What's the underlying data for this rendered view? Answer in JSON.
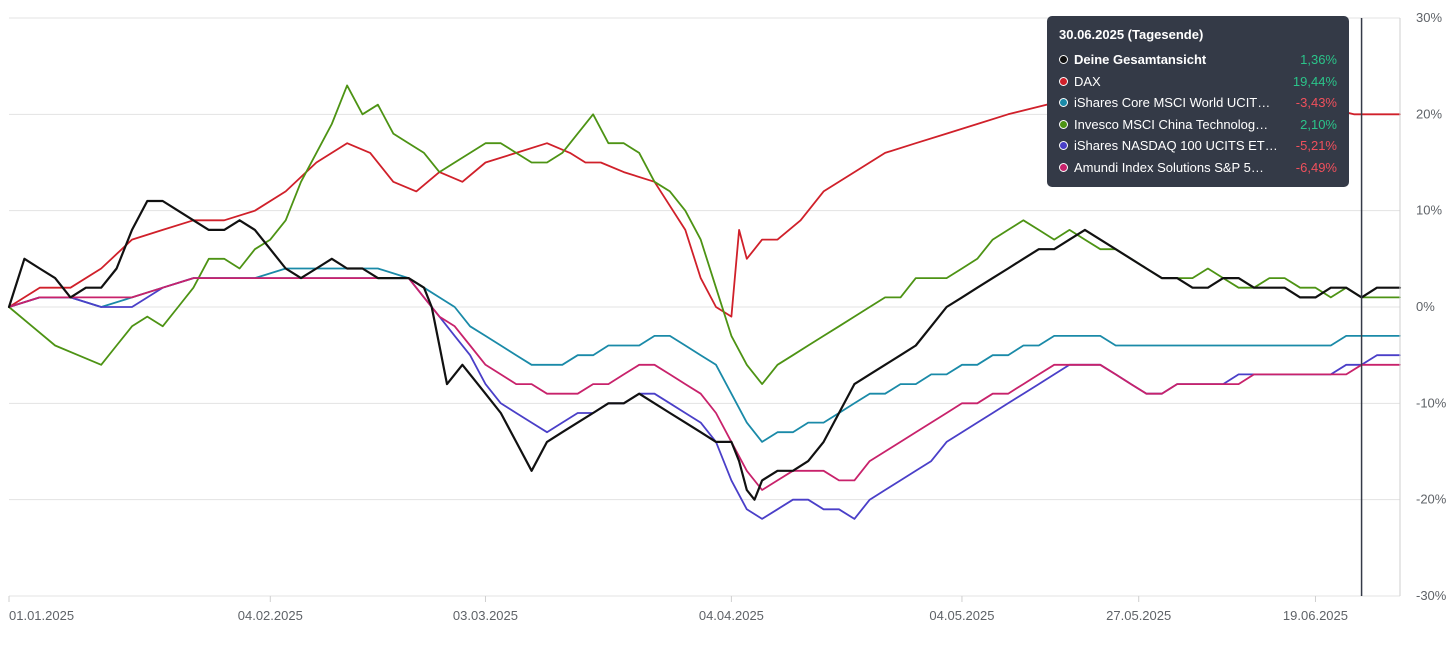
{
  "chart_data": {
    "type": "line",
    "y_unit": "%",
    "ylim": [
      -30,
      30
    ],
    "y_ticks": [
      30,
      20,
      10,
      0,
      -10,
      -20,
      -30
    ],
    "y_tick_labels": [
      "30%",
      "20%",
      "10%",
      "0%",
      "-10%",
      "-20%",
      "-30%"
    ],
    "x_tick_labels": [
      "01.01.2025",
      "04.02.2025",
      "03.03.2025",
      "04.04.2025",
      "04.05.2025",
      "27.05.2025",
      "19.06.2025"
    ],
    "x_tick_positions": [
      0,
      34,
      62,
      94,
      124,
      147,
      170
    ],
    "x_range": [
      0,
      181
    ],
    "cursor_x": 176,
    "grid": true,
    "series": [
      {
        "name": "DAX",
        "color": "#d0202a",
        "x": [
          0,
          4,
          8,
          12,
          16,
          20,
          24,
          28,
          32,
          36,
          40,
          44,
          47,
          50,
          53,
          56,
          59,
          62,
          66,
          70,
          73,
          75,
          77,
          80,
          84,
          88,
          90,
          92,
          94,
          95,
          96,
          97,
          98,
          100,
          103,
          106,
          110,
          114,
          118,
          122,
          126,
          130,
          135,
          140,
          145,
          150,
          155,
          160,
          165,
          170,
          175,
          178,
          181
        ],
        "y": [
          0,
          2,
          2,
          4,
          7,
          8,
          9,
          9,
          10,
          12,
          15,
          17,
          16,
          13,
          12,
          14,
          13,
          15,
          16,
          17,
          16,
          15,
          15,
          14,
          13,
          8,
          3,
          0,
          -1,
          8,
          5,
          6,
          7,
          7,
          9,
          12,
          14,
          16,
          17,
          18,
          19,
          20,
          21,
          21,
          22,
          22,
          22,
          21,
          21,
          21,
          20,
          20,
          20
        ]
      },
      {
        "name": "Invesco MSCI China Technolog…",
        "color": "#4d9314",
        "x": [
          0,
          3,
          6,
          9,
          12,
          14,
          16,
          18,
          20,
          22,
          24,
          26,
          28,
          30,
          32,
          34,
          36,
          38,
          40,
          42,
          44,
          46,
          48,
          50,
          52,
          54,
          56,
          58,
          60,
          62,
          64,
          66,
          68,
          70,
          72,
          74,
          76,
          78,
          80,
          82,
          84,
          86,
          88,
          90,
          92,
          94,
          96,
          98,
          100,
          102,
          104,
          106,
          108,
          110,
          112,
          114,
          116,
          118,
          120,
          122,
          124,
          126,
          128,
          130,
          132,
          134,
          136,
          138,
          140,
          142,
          144,
          146,
          148,
          150,
          152,
          154,
          156,
          158,
          160,
          162,
          164,
          166,
          168,
          170,
          172,
          174,
          176,
          178,
          181
        ],
        "y": [
          0,
          -2,
          -4,
          -5,
          -6,
          -4,
          -2,
          -1,
          -2,
          0,
          2,
          5,
          5,
          4,
          6,
          7,
          9,
          13,
          16,
          19,
          23,
          20,
          21,
          18,
          17,
          16,
          14,
          15,
          16,
          17,
          17,
          16,
          15,
          15,
          16,
          18,
          20,
          17,
          17,
          16,
          13,
          12,
          10,
          7,
          2,
          -3,
          -6,
          -8,
          -6,
          -5,
          -4,
          -3,
          -2,
          -1,
          0,
          1,
          1,
          3,
          3,
          3,
          4,
          5,
          7,
          8,
          9,
          8,
          7,
          8,
          7,
          6,
          6,
          5,
          4,
          3,
          3,
          3,
          4,
          3,
          2,
          2,
          3,
          3,
          2,
          2,
          1,
          2,
          1,
          1,
          1
        ]
      },
      {
        "name": "iShares Core MSCI World UCIT…",
        "color": "#1a8aa8",
        "x": [
          0,
          4,
          8,
          12,
          16,
          20,
          24,
          28,
          32,
          36,
          40,
          44,
          48,
          52,
          54,
          56,
          58,
          60,
          62,
          64,
          66,
          68,
          70,
          72,
          74,
          76,
          78,
          80,
          82,
          84,
          86,
          88,
          90,
          92,
          94,
          96,
          98,
          100,
          102,
          104,
          106,
          108,
          110,
          112,
          114,
          116,
          118,
          120,
          122,
          124,
          126,
          128,
          130,
          132,
          134,
          136,
          138,
          140,
          142,
          144,
          146,
          148,
          150,
          152,
          154,
          156,
          158,
          160,
          162,
          164,
          166,
          168,
          170,
          172,
          174,
          176,
          178,
          181
        ],
        "y": [
          0,
          1,
          1,
          0,
          1,
          2,
          3,
          3,
          3,
          4,
          4,
          4,
          4,
          3,
          2,
          1,
          0,
          -2,
          -3,
          -4,
          -5,
          -6,
          -6,
          -6,
          -5,
          -5,
          -4,
          -4,
          -4,
          -3,
          -3,
          -4,
          -5,
          -6,
          -9,
          -12,
          -14,
          -13,
          -13,
          -12,
          -12,
          -11,
          -10,
          -9,
          -9,
          -8,
          -8,
          -7,
          -7,
          -6,
          -6,
          -5,
          -5,
          -4,
          -4,
          -3,
          -3,
          -3,
          -3,
          -4,
          -4,
          -4,
          -4,
          -4,
          -4,
          -4,
          -4,
          -4,
          -4,
          -4,
          -4,
          -4,
          -4,
          -4,
          -3,
          -3,
          -3,
          -3
        ]
      },
      {
        "name": "iShares NASDAQ 100 UCITS ET…",
        "color": "#4a3fc8",
        "x": [
          0,
          4,
          8,
          12,
          16,
          20,
          24,
          28,
          32,
          36,
          40,
          44,
          48,
          52,
          54,
          56,
          58,
          60,
          62,
          64,
          66,
          68,
          70,
          72,
          74,
          76,
          78,
          80,
          82,
          84,
          86,
          88,
          90,
          92,
          94,
          96,
          98,
          100,
          102,
          104,
          106,
          108,
          110,
          112,
          114,
          116,
          118,
          120,
          122,
          124,
          126,
          128,
          130,
          132,
          134,
          136,
          138,
          140,
          142,
          144,
          146,
          148,
          150,
          152,
          154,
          156,
          158,
          160,
          162,
          164,
          166,
          168,
          170,
          172,
          174,
          176,
          178,
          181
        ],
        "y": [
          0,
          1,
          1,
          0,
          0,
          2,
          3,
          3,
          3,
          3,
          3,
          3,
          3,
          3,
          1,
          -1,
          -3,
          -5,
          -8,
          -10,
          -11,
          -12,
          -13,
          -12,
          -11,
          -11,
          -10,
          -10,
          -9,
          -9,
          -10,
          -11,
          -12,
          -14,
          -18,
          -21,
          -22,
          -21,
          -20,
          -20,
          -21,
          -21,
          -22,
          -20,
          -19,
          -18,
          -17,
          -16,
          -14,
          -13,
          -12,
          -11,
          -10,
          -9,
          -8,
          -7,
          -6,
          -6,
          -6,
          -7,
          -8,
          -9,
          -9,
          -8,
          -8,
          -8,
          -8,
          -7,
          -7,
          -7,
          -7,
          -7,
          -7,
          -7,
          -6,
          -6,
          -5,
          -5
        ]
      },
      {
        "name": "Amundi Index Solutions S&P 5…",
        "color": "#c8226b",
        "x": [
          0,
          4,
          8,
          12,
          16,
          20,
          24,
          28,
          32,
          36,
          40,
          44,
          48,
          52,
          54,
          56,
          58,
          60,
          62,
          64,
          66,
          68,
          70,
          72,
          74,
          76,
          78,
          80,
          82,
          84,
          86,
          88,
          90,
          92,
          94,
          96,
          98,
          100,
          102,
          104,
          106,
          108,
          110,
          112,
          114,
          116,
          118,
          120,
          122,
          124,
          126,
          128,
          130,
          132,
          134,
          136,
          138,
          140,
          142,
          144,
          146,
          148,
          150,
          152,
          154,
          156,
          158,
          160,
          162,
          164,
          166,
          168,
          170,
          172,
          174,
          176,
          178,
          181
        ],
        "y": [
          0,
          1,
          1,
          1,
          1,
          2,
          3,
          3,
          3,
          3,
          3,
          3,
          3,
          3,
          1,
          -1,
          -2,
          -4,
          -6,
          -7,
          -8,
          -8,
          -9,
          -9,
          -9,
          -8,
          -8,
          -7,
          -6,
          -6,
          -7,
          -8,
          -9,
          -11,
          -14,
          -17,
          -19,
          -18,
          -17,
          -17,
          -17,
          -18,
          -18,
          -16,
          -15,
          -14,
          -13,
          -12,
          -11,
          -10,
          -10,
          -9,
          -9,
          -8,
          -7,
          -6,
          -6,
          -6,
          -6,
          -7,
          -8,
          -9,
          -9,
          -8,
          -8,
          -8,
          -8,
          -8,
          -7,
          -7,
          -7,
          -7,
          -7,
          -7,
          -7,
          -6,
          -6,
          -6
        ]
      },
      {
        "name": "Deine Gesamtansicht",
        "color": "#111111",
        "x": [
          0,
          2,
          4,
          6,
          8,
          10,
          12,
          14,
          16,
          18,
          20,
          22,
          24,
          26,
          28,
          30,
          32,
          34,
          36,
          38,
          40,
          42,
          44,
          46,
          48,
          50,
          52,
          54,
          55,
          56,
          57,
          58,
          59,
          60,
          62,
          64,
          66,
          68,
          70,
          72,
          74,
          76,
          78,
          80,
          82,
          84,
          86,
          88,
          90,
          92,
          94,
          95,
          96,
          97,
          98,
          100,
          102,
          104,
          106,
          108,
          110,
          112,
          114,
          116,
          118,
          120,
          122,
          124,
          126,
          128,
          130,
          132,
          134,
          136,
          138,
          140,
          142,
          144,
          146,
          148,
          150,
          152,
          154,
          156,
          158,
          160,
          162,
          164,
          166,
          168,
          170,
          172,
          174,
          176,
          178,
          181
        ],
        "y": [
          0,
          5,
          4,
          3,
          1,
          2,
          2,
          4,
          8,
          11,
          11,
          10,
          9,
          8,
          8,
          9,
          8,
          6,
          4,
          3,
          4,
          5,
          4,
          4,
          3,
          3,
          3,
          2,
          0,
          -4,
          -8,
          -7,
          -6,
          -7,
          -9,
          -11,
          -14,
          -17,
          -14,
          -13,
          -12,
          -11,
          -10,
          -10,
          -9,
          -10,
          -11,
          -12,
          -13,
          -14,
          -14,
          -16,
          -19,
          -20,
          -18,
          -17,
          -17,
          -16,
          -14,
          -11,
          -8,
          -7,
          -6,
          -5,
          -4,
          -2,
          0,
          1,
          2,
          3,
          4,
          5,
          6,
          6,
          7,
          8,
          7,
          6,
          5,
          4,
          3,
          3,
          2,
          2,
          3,
          3,
          2,
          2,
          2,
          1,
          1,
          2,
          2,
          1,
          2,
          2
        ]
      }
    ]
  },
  "tooltip": {
    "title": "30.06.2025 (Tagesende)",
    "rows": [
      {
        "name": "Deine Gesamtansicht",
        "value": "1,36%",
        "dot_color": "#111111",
        "value_color": "#2bc48a"
      },
      {
        "name": "DAX",
        "value": "19,44%",
        "dot_color": "#d0202a",
        "value_color": "#2bc48a"
      },
      {
        "name": "iShares Core MSCI World UCIT…",
        "value": "-3,43%",
        "dot_color": "#1a8aa8",
        "value_color": "#f0505c"
      },
      {
        "name": "Invesco MSCI China Technolog…",
        "value": "2,10%",
        "dot_color": "#4d9314",
        "value_color": "#2bc48a"
      },
      {
        "name": "iShares NASDAQ 100 UCITS ET…",
        "value": "-5,21%",
        "dot_color": "#4a3fc8",
        "value_color": "#f0505c"
      },
      {
        "name": "Amundi Index Solutions S&P 5…",
        "value": "-6,49%",
        "dot_color": "#c8226b",
        "value_color": "#f0505c"
      }
    ]
  }
}
